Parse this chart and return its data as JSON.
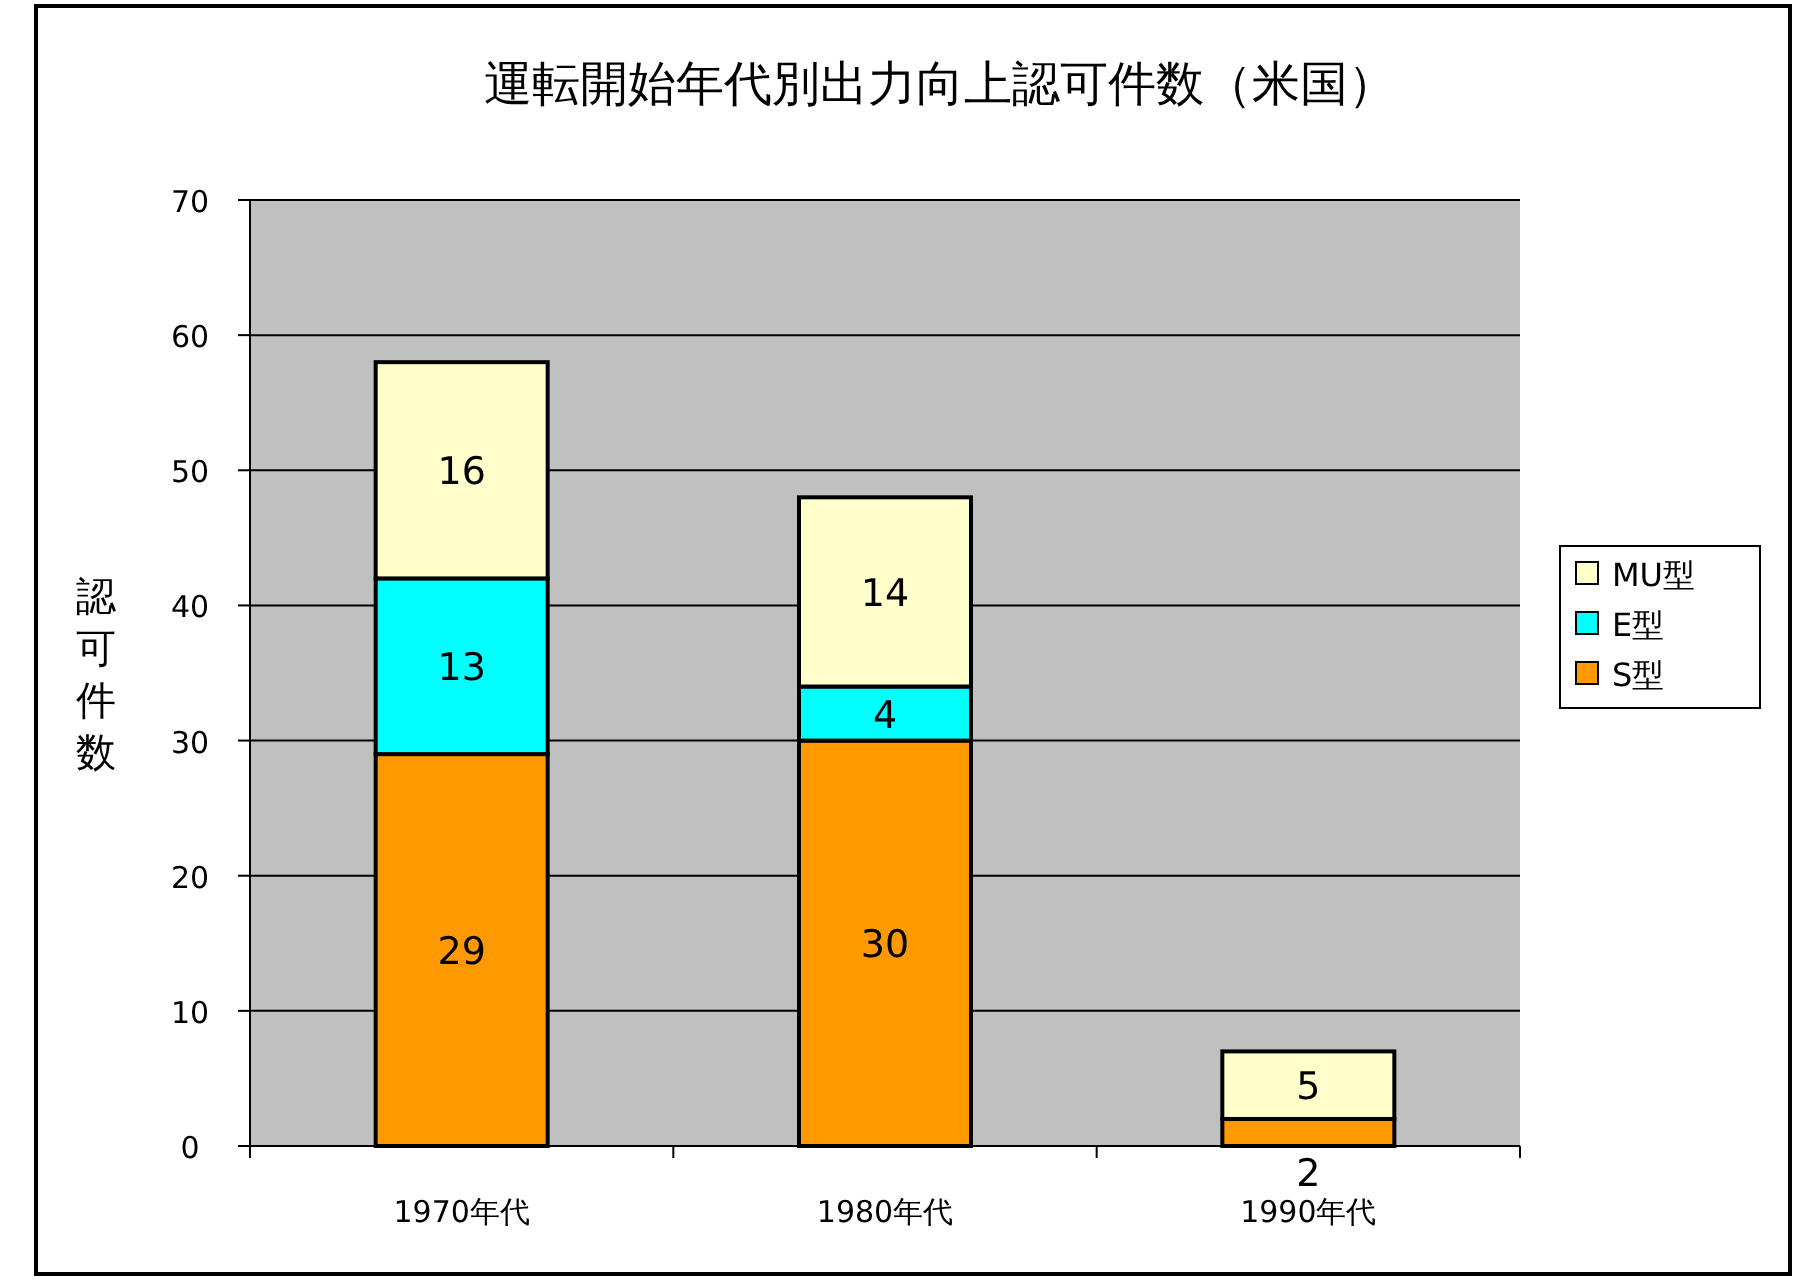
{
  "chart_data": {
    "type": "bar",
    "title": "運転開始年代別出力向上認可件数（米国）",
    "ylabel": "認可件数",
    "categories": [
      "1970年代",
      "1980年代",
      "1990年代"
    ],
    "series": [
      {
        "name": "S型",
        "color": "#ff9900",
        "values": [
          29,
          30,
          2
        ]
      },
      {
        "name": "E型",
        "color": "#00ffff",
        "values": [
          13,
          4,
          null
        ]
      },
      {
        "name": "MU型",
        "color": "#ffffcc",
        "values": [
          16,
          14,
          5
        ]
      }
    ],
    "stacked": true,
    "data_labels": true,
    "ylim": [
      0,
      70
    ],
    "yticks": [
      0,
      10,
      20,
      30,
      40,
      50,
      60,
      70
    ],
    "grid": "y",
    "legend": "right"
  }
}
